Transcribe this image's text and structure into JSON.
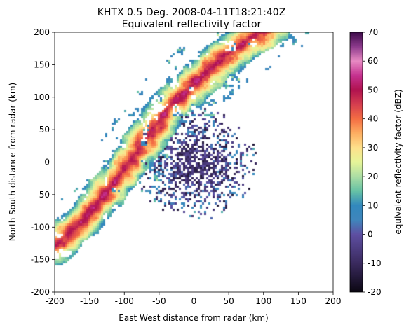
{
  "chart_data": {
    "type": "heatmap",
    "title": "KHTX 0.5 Deg. 2008-04-11T18:21:40Z",
    "subtitle": "Equivalent reflectivity factor",
    "xlabel": "East West distance from radar (km)",
    "ylabel": "North South distance from radar (km)",
    "xlim": [
      -200,
      200
    ],
    "ylim": [
      -200,
      200
    ],
    "xticks": [
      -200,
      -150,
      -100,
      -50,
      0,
      50,
      100,
      150,
      200
    ],
    "yticks": [
      -200,
      -150,
      -100,
      -50,
      0,
      50,
      100,
      150,
      200
    ],
    "grid": false,
    "colorbar": {
      "label": "equivalent reflectivity factor (dBZ)",
      "min": -20,
      "max": 70,
      "ticks": [
        -20,
        -10,
        0,
        10,
        20,
        30,
        40,
        50,
        60,
        70
      ],
      "colormap": "pyart_HomeyerRainbow-like",
      "stops": [
        {
          "value": -20,
          "color": "#0b0712"
        },
        {
          "value": -10,
          "color": "#3a2a5e"
        },
        {
          "value": 0,
          "color": "#5e4fa2"
        },
        {
          "value": 5,
          "color": "#3f86bc"
        },
        {
          "value": 10,
          "color": "#3288bd"
        },
        {
          "value": 15,
          "color": "#66c2a5"
        },
        {
          "value": 20,
          "color": "#abdda4"
        },
        {
          "value": 25,
          "color": "#e6f598"
        },
        {
          "value": 30,
          "color": "#fee08b"
        },
        {
          "value": 35,
          "color": "#fdae61"
        },
        {
          "value": 40,
          "color": "#f46d43"
        },
        {
          "value": 45,
          "color": "#d53e4f"
        },
        {
          "value": 50,
          "color": "#b0124f"
        },
        {
          "value": 55,
          "color": "#c5318f"
        },
        {
          "value": 60,
          "color": "#e88ac3"
        },
        {
          "value": 65,
          "color": "#8c3a8c"
        },
        {
          "value": 70,
          "color": "#3d0b4a"
        }
      ]
    },
    "storm_band": {
      "description_units": "km",
      "axis_points": [
        [
          -200,
          -130
        ],
        [
          -160,
          -90
        ],
        [
          -120,
          -40
        ],
        [
          -80,
          20
        ],
        [
          -40,
          80
        ],
        [
          0,
          120
        ],
        [
          40,
          160
        ],
        [
          80,
          190
        ],
        [
          110,
          210
        ]
      ],
      "peak_dbz": 55
    },
    "clutter": {
      "center": [
        0,
        0
      ],
      "radius_km": 90,
      "dbz_range": [
        -15,
        5
      ]
    }
  }
}
